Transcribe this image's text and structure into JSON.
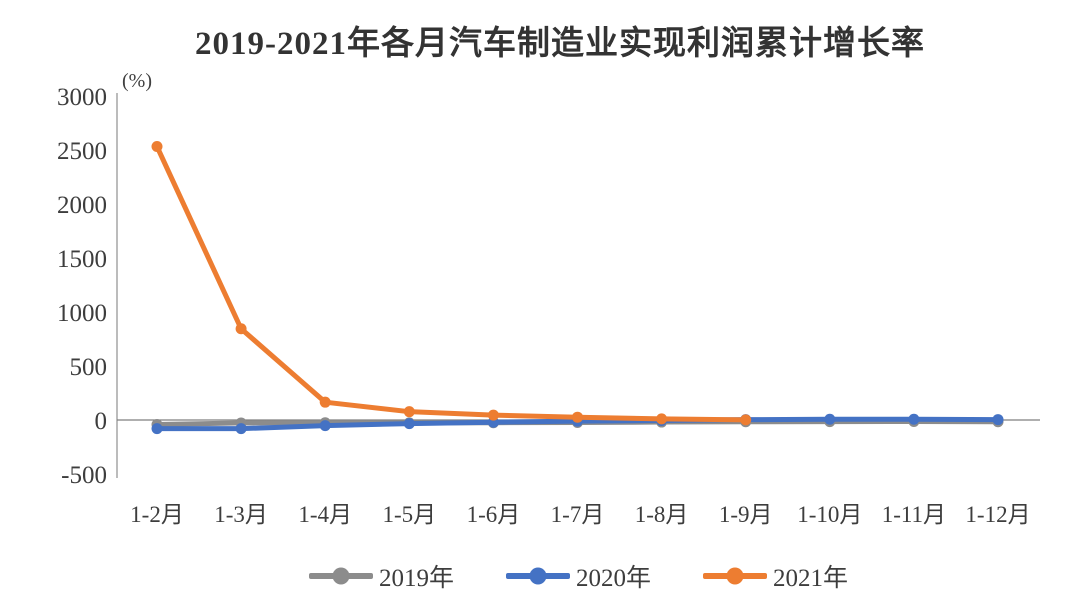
{
  "page": {
    "background_color": "#ffffff",
    "text_color": "#3d3d3d"
  },
  "chart_data": {
    "type": "line",
    "title": "2019-2021年各月汽车制造业实现利润累计增长率",
    "unit_label": "(%)",
    "xlabel": "",
    "ylabel": "(%)",
    "categories": [
      "1-2月",
      "1-3月",
      "1-4月",
      "1-5月",
      "1-6月",
      "1-7月",
      "1-8月",
      "1-9月",
      "1-10月",
      "1-11月",
      "1-12月"
    ],
    "series": [
      {
        "name": "2019年",
        "color": "#8C8C8C",
        "values": [
          -42.0,
          -27.2,
          -25.9,
          -27.0,
          -24.9,
          -23.2,
          -19.0,
          -16.6,
          -14.7,
          -13.9,
          -15.9
        ]
      },
      {
        "name": "2020年",
        "color": "#4472C4",
        "values": [
          -79.6,
          -80.2,
          -52.1,
          -33.5,
          -20.7,
          -10.9,
          -4.9,
          3.0,
          6.6,
          7.2,
          4.0
        ]
      },
      {
        "name": "2021年",
        "color": "#ED7D31",
        "values": [
          2532,
          845,
          165,
          77,
          45,
          26,
          10,
          1.2
        ]
      }
    ],
    "ylim": [
      -500,
      3000
    ],
    "yticks": [
      3000,
      2500,
      2000,
      1500,
      1000,
      500,
      0,
      -500
    ],
    "grid": false,
    "axis_color": "#A6A6A6",
    "zero_line_color": "#7F7F7F",
    "legend_position": "bottom",
    "marker": "circle"
  }
}
